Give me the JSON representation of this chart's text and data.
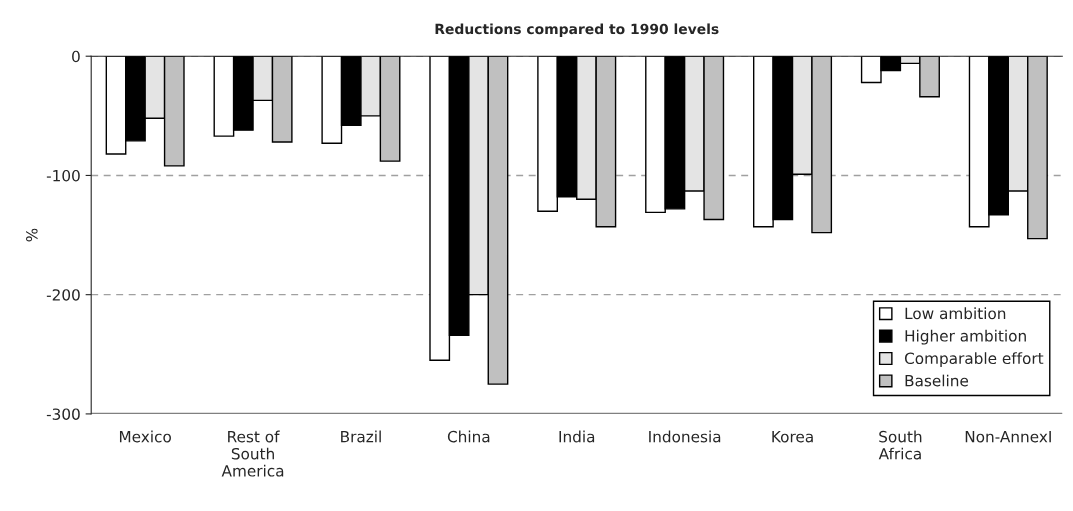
{
  "chart_data": {
    "type": "bar",
    "title": "Reductions compared to 1990 levels",
    "ylabel": "%",
    "categories": [
      "Mexico",
      "Rest of\nSouth\nAmerica",
      "Brazil",
      "China",
      "India",
      "Indonesia",
      "Korea",
      "South\nAfrica",
      "Non-AnnexI"
    ],
    "series": [
      {
        "name": "Low ambition",
        "color": "#ffffff",
        "values": [
          -82,
          -67,
          -73,
          -255,
          -130,
          -131,
          -143,
          -22,
          -143
        ]
      },
      {
        "name": "Higher ambition",
        "color": "#000000",
        "values": [
          -71,
          -62,
          -58,
          -234,
          -118,
          -128,
          -137,
          -12,
          -133
        ]
      },
      {
        "name": "Comparable effort",
        "color": "#e4e4e4",
        "values": [
          -52,
          -37,
          -50,
          -200,
          -120,
          -113,
          -99,
          -6,
          -113
        ]
      },
      {
        "name": "Baseline",
        "color": "#c0c0c0",
        "values": [
          -92,
          -72,
          -88,
          -275,
          -143,
          -137,
          -148,
          -34,
          -153
        ]
      }
    ],
    "ylim": [
      -300,
      0
    ],
    "yticks": [
      -300,
      -200,
      -100,
      0
    ],
    "grid": "y",
    "legend": "bottom right"
  }
}
